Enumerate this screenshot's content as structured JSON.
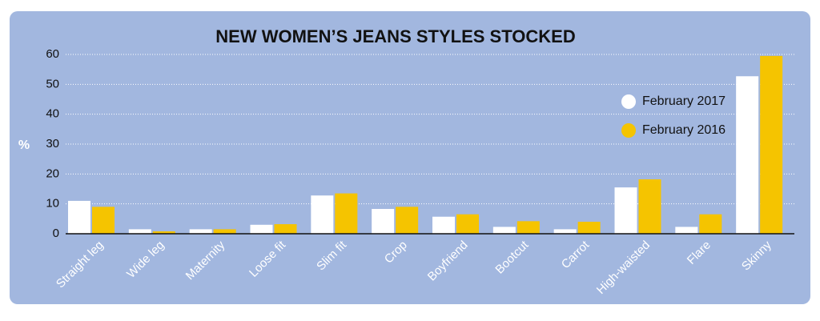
{
  "chart_data": {
    "type": "bar",
    "title": "NEW WOMEN’S  JEANS STYLES STOCKED",
    "y_label": "%",
    "categories": [
      "Straight leg",
      "Wide leg",
      "Maternity",
      "Loose fit",
      "Slim fit",
      "Crop",
      "Boyfriend",
      "Bootcut",
      "Carrot",
      "High-waisted",
      "Flare",
      "Skinny"
    ],
    "series": [
      {
        "name": "February 2017",
        "color": "#ffffff",
        "values": [
          11,
          1.5,
          1.5,
          3,
          12.8,
          8.3,
          5.7,
          2.3,
          1.5,
          15.5,
          2.3,
          52.7
        ]
      },
      {
        "name": "February 2016",
        "color": "#f5c400",
        "values": [
          9,
          0.8,
          1.5,
          3.2,
          13.5,
          9,
          6.5,
          4.2,
          4,
          18.2,
          6.5,
          59.5
        ]
      }
    ],
    "ylim": [
      0,
      60
    ],
    "yticks": [
      0,
      10,
      20,
      30,
      40,
      50,
      60
    ],
    "grid": true
  }
}
